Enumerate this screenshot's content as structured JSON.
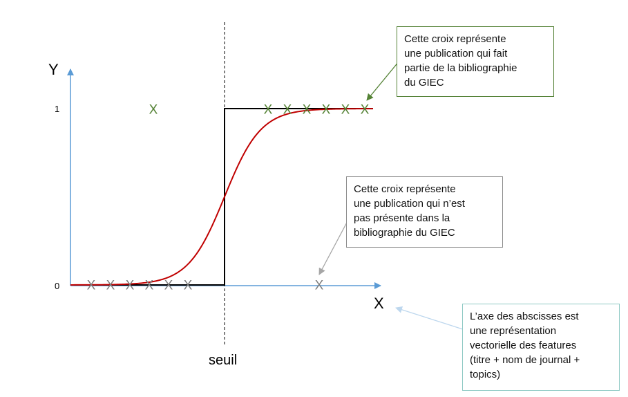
{
  "axes": {
    "y_name": "Y",
    "x_name": "X",
    "y_tick_1": "1",
    "y_tick_0": "0",
    "threshold_label": "seuil"
  },
  "markers": {
    "symbol": "X",
    "in_bibliography_color": "#548235",
    "not_in_bibliography_color": "#7f7f7f"
  },
  "colors": {
    "axis": "#5b9bd5",
    "step": "#000000",
    "sigmoid": "#c00000"
  },
  "notes": {
    "green": "Cette croix représente\nune publication qui fait\npartie de la bibliographie\ndu GIEC",
    "gray": "Cette croix représente\nune publication qui n’est\npas présente dans la\nbibliographie du GIEC",
    "teal": "L’axe des abscisses est\nune représentation\nvectorielle des features\n(titre + nom de journal +\ntopics)"
  }
}
